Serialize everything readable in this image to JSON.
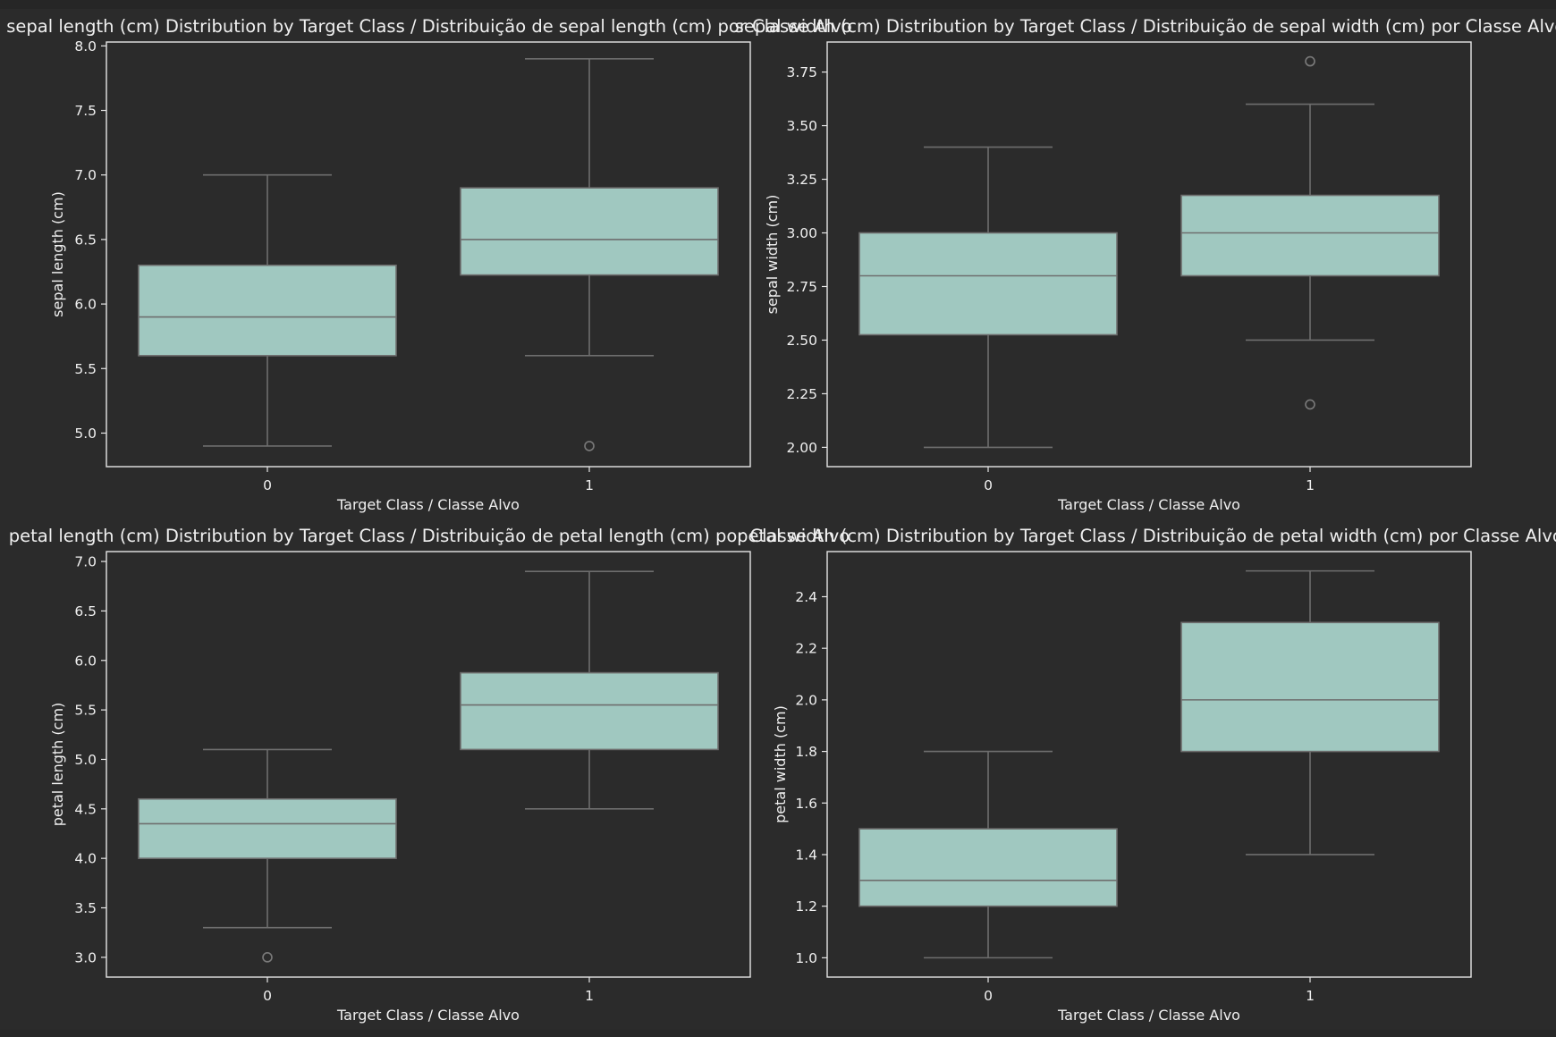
{
  "colors": {
    "background": "#2b2b2b",
    "box_fill": "#a0c8c0",
    "line": "#6e6e6e",
    "axes_frame": "#e6e6e6",
    "text": "#f0f0f0"
  },
  "chart_data": [
    {
      "type": "box",
      "title": "sepal length (cm) Distribution by Target Class / Distribuição de sepal length (cm) por Classe Alvo",
      "xlabel": "Target Class / Classe Alvo",
      "ylabel": "sepal length (cm)",
      "categories": [
        "0",
        "1"
      ],
      "ylim": [
        4.74,
        8.03
      ],
      "yticks": [
        "5.0",
        "5.5",
        "6.0",
        "6.5",
        "7.0",
        "7.5",
        "8.0"
      ],
      "grid": false,
      "boxes": [
        {
          "category": "0",
          "whisker_low": 4.9,
          "q1": 5.6,
          "median": 5.9,
          "q3": 6.3,
          "whisker_high": 7.0,
          "outliers": []
        },
        {
          "category": "1",
          "whisker_low": 5.6,
          "q1": 6.225,
          "median": 6.5,
          "q3": 6.9,
          "whisker_high": 7.9,
          "outliers": [
            4.9
          ]
        }
      ]
    },
    {
      "type": "box",
      "title": "sepal width (cm) Distribution by Target Class / Distribuição de sepal width (cm) por Classe Alvo",
      "xlabel": "Target Class / Classe Alvo",
      "ylabel": "sepal width (cm)",
      "categories": [
        "0",
        "1"
      ],
      "ylim": [
        1.91,
        3.89
      ],
      "yticks": [
        "2.00",
        "2.25",
        "2.50",
        "2.75",
        "3.00",
        "3.25",
        "3.50",
        "3.75"
      ],
      "grid": false,
      "boxes": [
        {
          "category": "0",
          "whisker_low": 2.0,
          "q1": 2.525,
          "median": 2.8,
          "q3": 3.0,
          "whisker_high": 3.4,
          "outliers": []
        },
        {
          "category": "1",
          "whisker_low": 2.5,
          "q1": 2.8,
          "median": 3.0,
          "q3": 3.175,
          "whisker_high": 3.6,
          "outliers": [
            3.8,
            2.2
          ]
        }
      ]
    },
    {
      "type": "box",
      "title": "petal length (cm) Distribution by Target Class / Distribuição de petal length (cm) por Classe Alvo",
      "xlabel": "Target Class / Classe Alvo",
      "ylabel": "petal length (cm)",
      "categories": [
        "0",
        "1"
      ],
      "ylim": [
        2.8,
        7.1
      ],
      "yticks": [
        "3.0",
        "3.5",
        "4.0",
        "4.5",
        "5.0",
        "5.5",
        "6.0",
        "6.5",
        "7.0"
      ],
      "grid": false,
      "boxes": [
        {
          "category": "0",
          "whisker_low": 3.3,
          "q1": 4.0,
          "median": 4.35,
          "q3": 4.6,
          "whisker_high": 5.1,
          "outliers": [
            3.0
          ]
        },
        {
          "category": "1",
          "whisker_low": 4.5,
          "q1": 5.1,
          "median": 5.55,
          "q3": 5.875,
          "whisker_high": 6.9,
          "outliers": []
        }
      ]
    },
    {
      "type": "box",
      "title": "petal width (cm) Distribution by Target Class / Distribuição de petal width (cm) por Classe Alvo",
      "xlabel": "Target Class / Classe Alvo",
      "ylabel": "petal width (cm)",
      "categories": [
        "0",
        "1"
      ],
      "ylim": [
        0.925,
        2.575
      ],
      "yticks": [
        "1.0",
        "1.2",
        "1.4",
        "1.6",
        "1.8",
        "2.0",
        "2.2",
        "2.4"
      ],
      "grid": false,
      "boxes": [
        {
          "category": "0",
          "whisker_low": 1.0,
          "q1": 1.2,
          "median": 1.3,
          "q3": 1.5,
          "whisker_high": 1.8,
          "outliers": []
        },
        {
          "category": "1",
          "whisker_low": 1.4,
          "q1": 1.8,
          "median": 2.0,
          "q3": 2.3,
          "whisker_high": 2.5,
          "outliers": []
        }
      ]
    }
  ]
}
